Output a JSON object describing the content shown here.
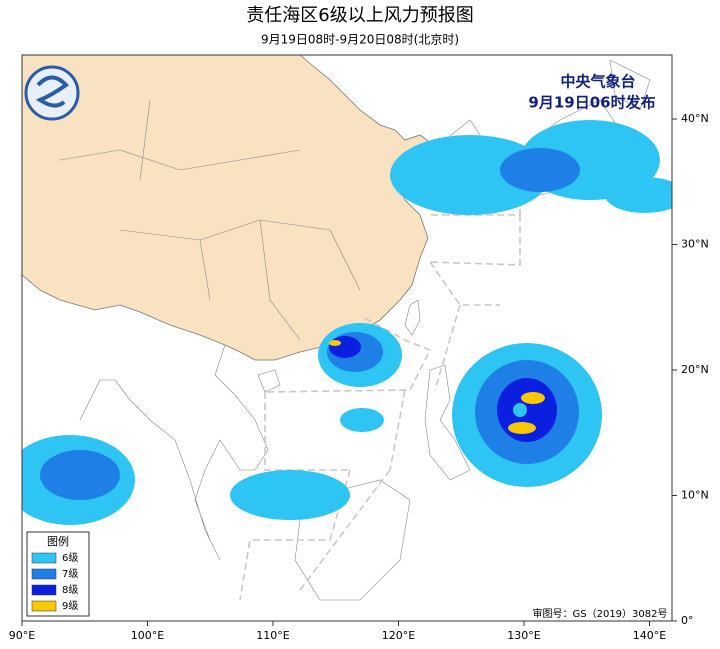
{
  "header": {
    "title": "责任海区6级以上风力预报图",
    "subtitle": "9月19日08时-9月20日08时(北京时)"
  },
  "agency": {
    "name": "中央气象台",
    "issued": "9月19日06时发布"
  },
  "legend": {
    "title": "图例",
    "items": [
      {
        "label": "6级",
        "color": "#2ec4f4"
      },
      {
        "label": "7级",
        "color": "#1e7fe6"
      },
      {
        "label": "8级",
        "color": "#0a1fe0"
      },
      {
        "label": "9级",
        "color": "#f8c800"
      }
    ]
  },
  "axes": {
    "lon_labels": [
      "90°E",
      "100°E",
      "110°E",
      "120°E",
      "130°E",
      "140°E"
    ],
    "lat_labels": [
      "0°",
      "10°N",
      "20°N",
      "30°N",
      "40°N"
    ]
  },
  "approval": "审图号：GS（2019）3082号"
}
